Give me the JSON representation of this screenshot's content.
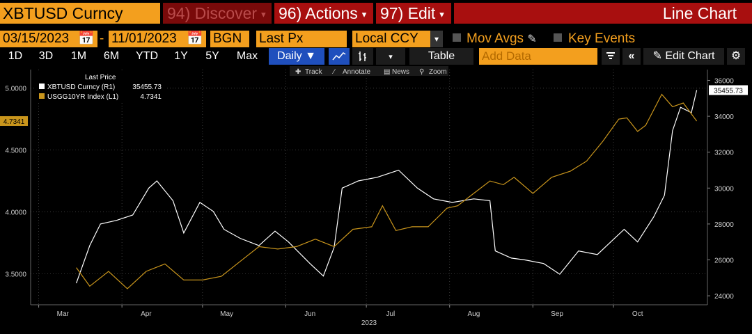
{
  "header": {
    "security": "XBTUSD Curncy",
    "discover_label": "94) Discover",
    "actions_label": "96) Actions",
    "edit_label": "97) Edit",
    "function_title": "Line Chart"
  },
  "controls": {
    "start_date": "03/15/2023",
    "date_sep": "-",
    "end_date": "11/01/2023",
    "source": "BGN",
    "field": "Last Px",
    "currency": "Local CCY",
    "mov_avgs": "Mov Avgs",
    "key_events": "Key Events"
  },
  "periods": [
    "1D",
    "3D",
    "1M",
    "6M",
    "YTD",
    "1Y",
    "5Y",
    "Max"
  ],
  "toolbar": {
    "frequency": "Daily",
    "table_label": "Table",
    "add_data_placeholder": "Add Data",
    "edit_chart": "Edit Chart"
  },
  "chart_toolbar": {
    "track": "Track",
    "annotate": "Annotate",
    "news": "News",
    "zoom": "Zoom"
  },
  "colors": {
    "orange": "#f39f1e",
    "red": "#a80f0f",
    "btc_line": "#ffffff",
    "yield_line": "#c9951c",
    "selected_blue": "#1f4fbd"
  },
  "chart_data": {
    "type": "line",
    "legend_title": "Last Price",
    "legend_position": "top-left",
    "grid": true,
    "xlabel": "2023",
    "x_ticks": [
      "Mar",
      "Apr",
      "May",
      "Jun",
      "Jul",
      "Aug",
      "Sep",
      "Oct"
    ],
    "series": [
      {
        "name": "XBTUSD Curncy (R1)",
        "last": "35455.73",
        "axis": "right",
        "color": "#ffffff",
        "x": [
          "2023-03-15",
          "2023-03-20",
          "2023-03-24",
          "2023-03-30",
          "2023-04-05",
          "2023-04-11",
          "2023-04-14",
          "2023-04-20",
          "2023-04-24",
          "2023-04-30",
          "2023-05-05",
          "2023-05-09",
          "2023-05-15",
          "2023-05-22",
          "2023-05-28",
          "2023-06-02",
          "2023-06-10",
          "2023-06-15",
          "2023-06-19",
          "2023-06-22",
          "2023-06-28",
          "2023-07-05",
          "2023-07-13",
          "2023-07-20",
          "2023-07-26",
          "2023-08-02",
          "2023-08-10",
          "2023-08-16",
          "2023-08-18",
          "2023-08-24",
          "2023-08-29",
          "2023-09-05",
          "2023-09-11",
          "2023-09-18",
          "2023-09-25",
          "2023-09-30",
          "2023-10-05",
          "2023-10-10",
          "2023-10-16",
          "2023-10-20",
          "2023-10-23",
          "2023-10-26",
          "2023-10-30",
          "2023-11-01"
        ],
        "values": [
          24700,
          26800,
          28000,
          28200,
          28500,
          30000,
          30400,
          29300,
          27500,
          29200,
          28700,
          27700,
          27200,
          26800,
          27600,
          27000,
          25800,
          25100,
          26700,
          30000,
          30400,
          30600,
          31000,
          30000,
          29400,
          29200,
          29400,
          29300,
          26500,
          26100,
          26000,
          25800,
          25200,
          26500,
          26300,
          27000,
          27700,
          27000,
          28400,
          29600,
          33200,
          34500,
          34200,
          35455.73
        ]
      },
      {
        "name": "USGG10YR Index (L1)",
        "last": "4.7341",
        "axis": "left",
        "color": "#c9951c",
        "x": [
          "2023-03-15",
          "2023-03-20",
          "2023-03-27",
          "2023-04-03",
          "2023-04-10",
          "2023-04-17",
          "2023-04-24",
          "2023-05-01",
          "2023-05-08",
          "2023-05-15",
          "2023-05-22",
          "2023-05-29",
          "2023-06-05",
          "2023-06-12",
          "2023-06-19",
          "2023-06-26",
          "2023-07-03",
          "2023-07-07",
          "2023-07-12",
          "2023-07-18",
          "2023-07-24",
          "2023-07-31",
          "2023-08-04",
          "2023-08-10",
          "2023-08-16",
          "2023-08-21",
          "2023-08-25",
          "2023-09-01",
          "2023-09-08",
          "2023-09-15",
          "2023-09-21",
          "2023-09-27",
          "2023-10-03",
          "2023-10-06",
          "2023-10-10",
          "2023-10-13",
          "2023-10-19",
          "2023-10-23",
          "2023-10-27",
          "2023-11-01"
        ],
        "values": [
          3.55,
          3.4,
          3.52,
          3.38,
          3.52,
          3.58,
          3.45,
          3.45,
          3.48,
          3.6,
          3.72,
          3.7,
          3.72,
          3.78,
          3.72,
          3.86,
          3.88,
          4.05,
          3.85,
          3.88,
          3.88,
          4.03,
          4.05,
          4.15,
          4.25,
          4.22,
          4.28,
          4.15,
          4.28,
          4.33,
          4.41,
          4.57,
          4.75,
          4.76,
          4.65,
          4.7,
          4.95,
          4.85,
          4.88,
          4.7341
        ]
      }
    ],
    "left_axis": {
      "ticks": [
        "3.5000",
        "4.0000",
        "4.5000",
        "5.0000"
      ],
      "ylim": [
        3.25,
        5.15
      ]
    },
    "right_axis": {
      "ticks": [
        "24000",
        "26000",
        "28000",
        "30000",
        "32000",
        "34000",
        "36000"
      ],
      "ylim": [
        23500,
        36600
      ]
    }
  }
}
